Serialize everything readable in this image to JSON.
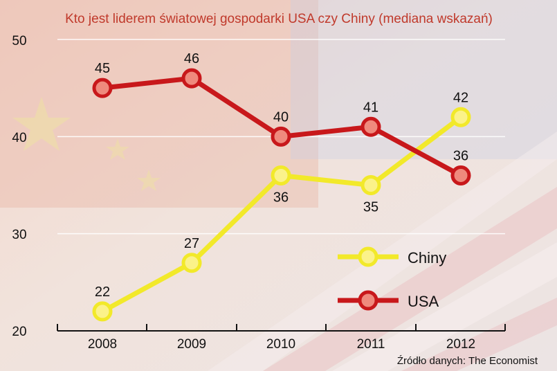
{
  "chart_data": {
    "type": "line",
    "title": "Kto jest liderem światowej gospodarki USA czy Chiny (mediana wskazań)",
    "x": [
      "2008",
      "2009",
      "2010",
      "2011",
      "2012"
    ],
    "ylim": [
      20,
      50
    ],
    "yticks": [
      20,
      30,
      40,
      50
    ],
    "grid": true,
    "legend_position": "lower-right",
    "series": [
      {
        "name": "USA",
        "values": [
          45,
          46,
          40,
          41,
          36
        ],
        "color": "#c8181b"
      },
      {
        "name": "Chiny",
        "values": [
          22,
          27,
          36,
          35,
          42
        ],
        "color": "#f2e92a"
      }
    ],
    "source": "Źródło danych: The Economist"
  }
}
